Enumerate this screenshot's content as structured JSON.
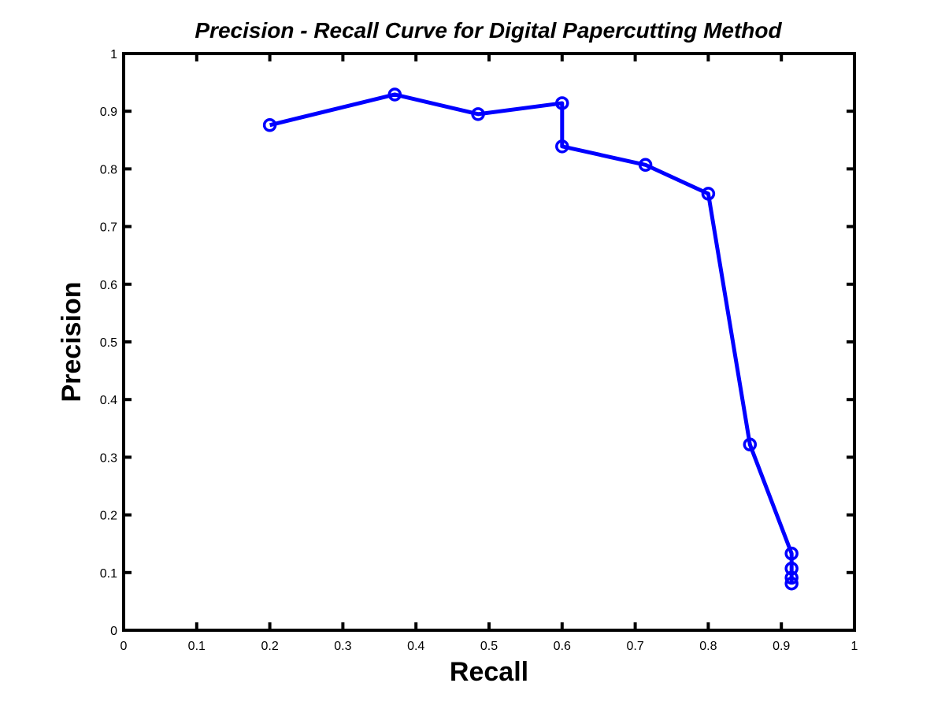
{
  "chart_data": {
    "type": "line",
    "title": "Precision - Recall Curve for Digital Papercutting Method",
    "xlabel": "Recall",
    "ylabel": "Precision",
    "xlim": [
      0,
      1
    ],
    "ylim": [
      0,
      1
    ],
    "grid": false,
    "xticks": [
      "0",
      "0.1",
      "0.2",
      "0.3",
      "0.4",
      "0.5",
      "0.6",
      "0.7",
      "0.8",
      "0.9",
      "1"
    ],
    "yticks": [
      "0",
      "0.1",
      "0.2",
      "0.3",
      "0.4",
      "0.5",
      "0.6",
      "0.7",
      "0.8",
      "0.9",
      "1"
    ],
    "series": [
      {
        "name": "Digital Papercutting Method",
        "color": "#0000ff",
        "marker": "circle",
        "x": [
          0.2,
          0.371,
          0.485,
          0.6,
          0.6,
          0.714,
          0.8,
          0.857,
          0.914,
          0.914,
          0.914,
          0.914
        ],
        "y": [
          0.876,
          0.929,
          0.895,
          0.914,
          0.839,
          0.807,
          0.757,
          0.322,
          0.133,
          0.107,
          0.091,
          0.081
        ]
      }
    ]
  }
}
